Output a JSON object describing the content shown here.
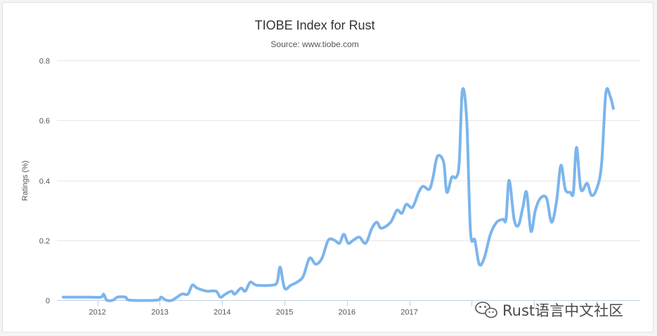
{
  "chart_data": {
    "type": "line",
    "title": "TIOBE Index for Rust",
    "subtitle": "Source: www.tiobe.com",
    "ylabel": "Ratings (%)",
    "xlabel": "",
    "ylim": [
      0,
      0.8
    ],
    "yticks": [
      "0",
      "0.2",
      "0.4",
      "0.6",
      "0.8"
    ],
    "xlim": [
      2011.35,
      2020.7
    ],
    "xticks": [
      "2012",
      "2013",
      "2014",
      "2015",
      "2016",
      "2017"
    ],
    "grid": true,
    "legend": "none",
    "series": [
      {
        "color": "#7cb5ec",
        "points": [
          [
            2011.45,
            0.01
          ],
          [
            2011.9,
            0.01
          ],
          [
            2012.06,
            0.01
          ],
          [
            2012.1,
            0.02
          ],
          [
            2012.15,
            0.0
          ],
          [
            2012.25,
            0.0
          ],
          [
            2012.32,
            0.01
          ],
          [
            2012.45,
            0.01
          ],
          [
            2012.52,
            0.0
          ],
          [
            2012.95,
            0.0
          ],
          [
            2013.02,
            0.01
          ],
          [
            2013.1,
            0.0
          ],
          [
            2013.2,
            0.0
          ],
          [
            2013.35,
            0.02
          ],
          [
            2013.45,
            0.02
          ],
          [
            2013.52,
            0.05
          ],
          [
            2013.6,
            0.04
          ],
          [
            2013.75,
            0.03
          ],
          [
            2013.9,
            0.03
          ],
          [
            2013.97,
            0.01
          ],
          [
            2014.05,
            0.02
          ],
          [
            2014.15,
            0.03
          ],
          [
            2014.2,
            0.02
          ],
          [
            2014.3,
            0.04
          ],
          [
            2014.37,
            0.03
          ],
          [
            2014.45,
            0.06
          ],
          [
            2014.55,
            0.05
          ],
          [
            2014.8,
            0.05
          ],
          [
            2014.88,
            0.06
          ],
          [
            2014.93,
            0.11
          ],
          [
            2015.0,
            0.04
          ],
          [
            2015.1,
            0.05
          ],
          [
            2015.2,
            0.06
          ],
          [
            2015.3,
            0.08
          ],
          [
            2015.4,
            0.14
          ],
          [
            2015.5,
            0.12
          ],
          [
            2015.6,
            0.14
          ],
          [
            2015.7,
            0.2
          ],
          [
            2015.8,
            0.2
          ],
          [
            2015.88,
            0.19
          ],
          [
            2015.95,
            0.22
          ],
          [
            2016.02,
            0.19
          ],
          [
            2016.1,
            0.2
          ],
          [
            2016.2,
            0.21
          ],
          [
            2016.3,
            0.19
          ],
          [
            2016.4,
            0.24
          ],
          [
            2016.48,
            0.26
          ],
          [
            2016.55,
            0.24
          ],
          [
            2016.7,
            0.26
          ],
          [
            2016.8,
            0.3
          ],
          [
            2016.88,
            0.29
          ],
          [
            2016.95,
            0.32
          ],
          [
            2017.05,
            0.31
          ],
          [
            2017.15,
            0.36
          ],
          [
            2017.22,
            0.38
          ],
          [
            2017.32,
            0.37
          ],
          [
            2017.38,
            0.41
          ],
          [
            2017.45,
            0.48
          ],
          [
            2017.55,
            0.46
          ],
          [
            2017.6,
            0.36
          ],
          [
            2017.68,
            0.41
          ],
          [
            2017.75,
            0.41
          ],
          [
            2017.8,
            0.46
          ],
          [
            2017.85,
            0.7
          ],
          [
            2017.92,
            0.6
          ],
          [
            2017.98,
            0.23
          ],
          [
            2018.05,
            0.2
          ],
          [
            2018.12,
            0.12
          ],
          [
            2018.2,
            0.14
          ],
          [
            2018.3,
            0.22
          ],
          [
            2018.4,
            0.26
          ],
          [
            2018.5,
            0.27
          ],
          [
            2018.55,
            0.27
          ],
          [
            2018.6,
            0.4
          ],
          [
            2018.68,
            0.27
          ],
          [
            2018.75,
            0.25
          ],
          [
            2018.82,
            0.31
          ],
          [
            2018.88,
            0.36
          ],
          [
            2018.95,
            0.23
          ],
          [
            2019.02,
            0.3
          ],
          [
            2019.1,
            0.34
          ],
          [
            2019.2,
            0.34
          ],
          [
            2019.28,
            0.26
          ],
          [
            2019.36,
            0.33
          ],
          [
            2019.43,
            0.45
          ],
          [
            2019.5,
            0.37
          ],
          [
            2019.58,
            0.36
          ],
          [
            2019.63,
            0.36
          ],
          [
            2019.68,
            0.51
          ],
          [
            2019.75,
            0.37
          ],
          [
            2019.85,
            0.39
          ],
          [
            2019.92,
            0.35
          ],
          [
            2020.0,
            0.37
          ],
          [
            2020.08,
            0.45
          ],
          [
            2020.15,
            0.69
          ],
          [
            2020.22,
            0.68
          ],
          [
            2020.27,
            0.64
          ]
        ]
      }
    ]
  },
  "watermark": {
    "text": "Rust语言中文社区",
    "icon": "wechat-icon"
  }
}
